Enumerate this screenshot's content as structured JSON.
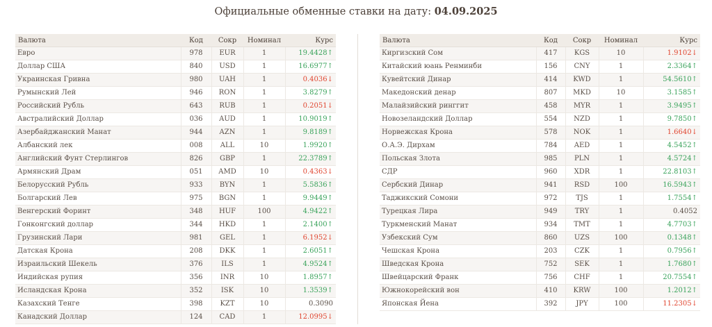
{
  "header": {
    "title_prefix": "Официальные обменные ставки на дату:",
    "date": "04.09.2025"
  },
  "columns": {
    "name": "Валюта",
    "code": "Код",
    "abbr": "Сокр",
    "nominal": "Номинал",
    "rate": "Курс"
  },
  "colors": {
    "up": "#3aa35b",
    "down": "#e0452f",
    "header_bg": "#f0ece7"
  },
  "left_rows": [
    {
      "name": "Евро",
      "code": "978",
      "abbr": "EUR",
      "nominal": "1",
      "rate": "19.4428↑",
      "trend": "up"
    },
    {
      "name": "Доллар США",
      "code": "840",
      "abbr": "USD",
      "nominal": "1",
      "rate": "16.6977↑",
      "trend": "up"
    },
    {
      "name": "Украинская Гривна",
      "code": "980",
      "abbr": "UAH",
      "nominal": "1",
      "rate": "0.4036↓",
      "trend": "down"
    },
    {
      "name": "Румынский Лей",
      "code": "946",
      "abbr": "RON",
      "nominal": "1",
      "rate": "3.8279↑",
      "trend": "up"
    },
    {
      "name": "Российский Рубль",
      "code": "643",
      "abbr": "RUB",
      "nominal": "1",
      "rate": "0.2051↓",
      "trend": "down"
    },
    {
      "name": "Австралийский Доллар",
      "code": "036",
      "abbr": "AUD",
      "nominal": "1",
      "rate": "10.9019↑",
      "trend": "up"
    },
    {
      "name": "Азербайджанский Манат",
      "code": "944",
      "abbr": "AZN",
      "nominal": "1",
      "rate": "9.8189↑",
      "trend": "up"
    },
    {
      "name": "Албанский лек",
      "code": "008",
      "abbr": "ALL",
      "nominal": "10",
      "rate": "1.9920↑",
      "trend": "up"
    },
    {
      "name": "Английский Фунт Стерлингов",
      "code": "826",
      "abbr": "GBP",
      "nominal": "1",
      "rate": "22.3789↑",
      "trend": "up"
    },
    {
      "name": "Армянский Драм",
      "code": "051",
      "abbr": "AMD",
      "nominal": "10",
      "rate": "0.4363↓",
      "trend": "down"
    },
    {
      "name": "Белорусский Рубль",
      "code": "933",
      "abbr": "BYN",
      "nominal": "1",
      "rate": "5.5836↑",
      "trend": "up"
    },
    {
      "name": "Болгарский Лев",
      "code": "975",
      "abbr": "BGN",
      "nominal": "1",
      "rate": "9.9449↑",
      "trend": "up"
    },
    {
      "name": "Венгерский Форинт",
      "code": "348",
      "abbr": "HUF",
      "nominal": "100",
      "rate": "4.9422↑",
      "trend": "up"
    },
    {
      "name": "Гонконгский доллар",
      "code": "344",
      "abbr": "HKD",
      "nominal": "1",
      "rate": "2.1400↑",
      "trend": "up"
    },
    {
      "name": "Грузинский Лари",
      "code": "981",
      "abbr": "GEL",
      "nominal": "1",
      "rate": "6.1952↓",
      "trend": "down"
    },
    {
      "name": "Датская Крона",
      "code": "208",
      "abbr": "DKK",
      "nominal": "1",
      "rate": "2.6051↑",
      "trend": "up"
    },
    {
      "name": "Израильский Шекель",
      "code": "376",
      "abbr": "ILS",
      "nominal": "1",
      "rate": "4.9524↑",
      "trend": "up"
    },
    {
      "name": "Индийская рупия",
      "code": "356",
      "abbr": "INR",
      "nominal": "10",
      "rate": "1.8957↑",
      "trend": "up"
    },
    {
      "name": "Исландская Крона",
      "code": "352",
      "abbr": "ISK",
      "nominal": "10",
      "rate": "1.3539↑",
      "trend": "up"
    },
    {
      "name": "Казахский Тенге",
      "code": "398",
      "abbr": "KZT",
      "nominal": "10",
      "rate": "0.3090",
      "trend": "same"
    },
    {
      "name": "Канадский Доллар",
      "code": "124",
      "abbr": "CAD",
      "nominal": "1",
      "rate": "12.0995↓",
      "trend": "down"
    }
  ],
  "right_rows": [
    {
      "name": "Киргизский Сом",
      "code": "417",
      "abbr": "KGS",
      "nominal": "10",
      "rate": "1.9102↓",
      "trend": "down"
    },
    {
      "name": "Китайский юань Ренминби",
      "code": "156",
      "abbr": "CNY",
      "nominal": "1",
      "rate": "2.3364↑",
      "trend": "up"
    },
    {
      "name": "Кувейтский Динар",
      "code": "414",
      "abbr": "KWD",
      "nominal": "1",
      "rate": "54.5610↑",
      "trend": "up"
    },
    {
      "name": "Македонский денар",
      "code": "807",
      "abbr": "MKD",
      "nominal": "10",
      "rate": "3.1585↑",
      "trend": "up"
    },
    {
      "name": "Малайзийский ринггит",
      "code": "458",
      "abbr": "MYR",
      "nominal": "1",
      "rate": "3.9495↑",
      "trend": "up"
    },
    {
      "name": "Новозеландский Доллар",
      "code": "554",
      "abbr": "NZD",
      "nominal": "1",
      "rate": "9.7850↑",
      "trend": "up"
    },
    {
      "name": "Норвежская Крона",
      "code": "578",
      "abbr": "NOK",
      "nominal": "1",
      "rate": "1.6640↓",
      "trend": "down"
    },
    {
      "name": "О.А.Э. Дирхам",
      "code": "784",
      "abbr": "AED",
      "nominal": "1",
      "rate": "4.5452↑",
      "trend": "up"
    },
    {
      "name": "Польская Злота",
      "code": "985",
      "abbr": "PLN",
      "nominal": "1",
      "rate": "4.5724↑",
      "trend": "up"
    },
    {
      "name": "СДР",
      "code": "960",
      "abbr": "XDR",
      "nominal": "1",
      "rate": "22.8103↑",
      "trend": "up"
    },
    {
      "name": "Сербский Динар",
      "code": "941",
      "abbr": "RSD",
      "nominal": "100",
      "rate": "16.5943↑",
      "trend": "up"
    },
    {
      "name": "Таджикский Сомони",
      "code": "972",
      "abbr": "TJS",
      "nominal": "1",
      "rate": "1.7554↑",
      "trend": "up"
    },
    {
      "name": "Турецкая Лира",
      "code": "949",
      "abbr": "TRY",
      "nominal": "1",
      "rate": "0.4052",
      "trend": "same"
    },
    {
      "name": "Туркменский Манат",
      "code": "934",
      "abbr": "TMT",
      "nominal": "1",
      "rate": "4.7703↑",
      "trend": "up"
    },
    {
      "name": "Узбекский Сум",
      "code": "860",
      "abbr": "UZS",
      "nominal": "100",
      "rate": "0.1348↑",
      "trend": "up"
    },
    {
      "name": "Чешская Крона",
      "code": "203",
      "abbr": "CZK",
      "nominal": "1",
      "rate": "0.7956↑",
      "trend": "up"
    },
    {
      "name": "Шведская Крона",
      "code": "752",
      "abbr": "SEK",
      "nominal": "1",
      "rate": "1.7680↑",
      "trend": "up"
    },
    {
      "name": "Швейцарский Франк",
      "code": "756",
      "abbr": "CHF",
      "nominal": "1",
      "rate": "20.7554↑",
      "trend": "up"
    },
    {
      "name": "Южнокорейский вон",
      "code": "410",
      "abbr": "KRW",
      "nominal": "100",
      "rate": "1.2012↑",
      "trend": "up"
    },
    {
      "name": "Японская Йена",
      "code": "392",
      "abbr": "JPY",
      "nominal": "100",
      "rate": "11.2305↓",
      "trend": "down"
    }
  ]
}
